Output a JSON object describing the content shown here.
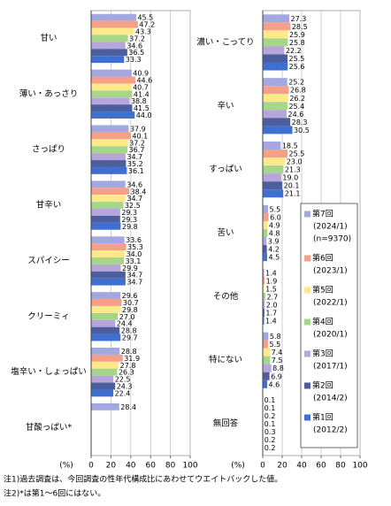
{
  "chart_data": [
    {
      "type": "bar",
      "orientation": "horizontal",
      "xlabel": "(%)",
      "categories": [
        "甘い",
        "薄い・あっさり",
        "さっぱり",
        "甘辛い",
        "スパイシー",
        "クリーミィ",
        "塩辛い・しょっぱい",
        "甘酸っぱい*"
      ],
      "xlim": [
        0,
        100
      ],
      "xticks": [
        0,
        20,
        40,
        60,
        80,
        100
      ],
      "grid": true,
      "series": [
        {
          "color": "#a3a8e0",
          "values": [
            45.5,
            40.9,
            37.9,
            34.6,
            33.6,
            29.6,
            28.8,
            28.4
          ],
          "value_labels": [
            "45.5",
            "40.9",
            "37.9",
            "34.6",
            "33.6",
            "29.6",
            "28.8",
            "28.4"
          ]
        },
        {
          "color": "#f5a088",
          "values": [
            47.2,
            44.6,
            40.1,
            38.4,
            35.3,
            30.7,
            31.9,
            null
          ],
          "value_labels": [
            "47.2",
            "44.6",
            "40.1",
            "38.4",
            "35.3",
            "30.7",
            "31.9",
            null
          ]
        },
        {
          "color": "#ffe98a",
          "values": [
            43.3,
            40.7,
            37.2,
            34.7,
            34.0,
            29.8,
            27.8,
            null
          ],
          "value_labels": [
            "43.3",
            "40.7",
            "37.2",
            "34.7",
            "34.0",
            "29.8",
            "27.8",
            null
          ]
        },
        {
          "color": "#a5d68a",
          "values": [
            37.2,
            41.4,
            36.7,
            32.5,
            33.1,
            27.0,
            26.3,
            null
          ],
          "value_labels": [
            "37.2",
            "41.4",
            "36.7",
            "32.5",
            "33.1",
            "27.0",
            "26.3",
            null
          ]
        },
        {
          "color": "#b7a6dc",
          "values": [
            34.6,
            38.8,
            34.7,
            29.3,
            29.9,
            24.4,
            22.5,
            null
          ],
          "value_labels": [
            "34.6",
            "38.8",
            "34.7",
            "29.3",
            "29.9",
            "24.4",
            "22.5",
            null
          ]
        },
        {
          "color": "#4d5e9e",
          "values": [
            36.5,
            41.5,
            35.2,
            29.3,
            34.7,
            28.8,
            24.3,
            null
          ],
          "value_labels": [
            "36.5",
            "41.5",
            "35.2",
            "29.3",
            "34.7",
            "28.8",
            "24.3",
            null
          ]
        },
        {
          "color": "#3f6fd0",
          "values": [
            33.3,
            44.0,
            36.1,
            29.8,
            34.7,
            29.7,
            22.4,
            null
          ],
          "value_labels": [
            "33.3",
            "44.0",
            "36.1",
            "29.8",
            "34.7",
            "29.7",
            "22.4",
            null
          ]
        }
      ]
    },
    {
      "type": "bar",
      "orientation": "horizontal",
      "xlabel": "(%)",
      "categories": [
        "濃い・こってり",
        "辛い",
        "すっぱい",
        "苦い",
        "その他",
        "特にない",
        "無回答"
      ],
      "xlim": [
        0,
        100
      ],
      "xticks": [
        0,
        20,
        40,
        60,
        80,
        100
      ],
      "grid": true,
      "legend": true,
      "n_label": "(n=9370)",
      "series": [
        {
          "name": "第7回",
          "period": "(2024/1)",
          "color": "#a3a8e0",
          "values": [
            27.3,
            25.2,
            18.5,
            5.5,
            1.4,
            5.8,
            0.1
          ],
          "value_labels": [
            "27.3",
            "25.2",
            "18.5",
            "5.5",
            "1.4",
            "5.8",
            "0.1"
          ]
        },
        {
          "name": "第6回",
          "period": "(2023/1)",
          "color": "#f5a088",
          "values": [
            28.5,
            26.8,
            25.5,
            6.0,
            1.9,
            5.5,
            0.1
          ],
          "value_labels": [
            "28.5",
            "26.8",
            "25.5",
            "6.0",
            "1.9",
            "5.5",
            "0.1"
          ]
        },
        {
          "name": "第5回",
          "period": "(2022/1)",
          "color": "#ffe98a",
          "values": [
            25.9,
            26.2,
            23.0,
            4.9,
            1.5,
            7.4,
            0.2
          ],
          "value_labels": [
            "25.9",
            "26.2",
            "23.0",
            "4.9",
            "1.5",
            "7.4",
            "0.2"
          ]
        },
        {
          "name": "第4回",
          "period": "(2020/1)",
          "color": "#a5d68a",
          "values": [
            25.8,
            25.4,
            21.3,
            4.8,
            2.7,
            7.5,
            0.1
          ],
          "value_labels": [
            "25.8",
            "25.4",
            "21.3",
            "4.8",
            "2.7",
            "7.5",
            "0.1"
          ]
        },
        {
          "name": "第3回",
          "period": "(2017/1)",
          "color": "#b7a6dc",
          "values": [
            22.2,
            24.6,
            19.0,
            3.9,
            2.0,
            8.8,
            0.3
          ],
          "value_labels": [
            "22.2",
            "24.6",
            "19.0",
            "3.9",
            "2.0",
            "8.8",
            "0.3"
          ]
        },
        {
          "name": "第2回",
          "period": "(2014/2)",
          "color": "#4d5e9e",
          "values": [
            25.5,
            28.3,
            20.1,
            4.2,
            1.7,
            6.9,
            0.2
          ],
          "value_labels": [
            "25.5",
            "28.3",
            "20.1",
            "4.2",
            "1.7",
            "6.9",
            "0.2"
          ]
        },
        {
          "name": "第1回",
          "period": "(2012/2)",
          "color": "#3f6fd0",
          "values": [
            25.6,
            30.5,
            21.1,
            4.5,
            1.4,
            4.6,
            0.2
          ],
          "value_labels": [
            "25.6",
            "30.5",
            "21.1",
            "4.5",
            "1.4",
            "4.6",
            "0.2"
          ]
        }
      ]
    }
  ],
  "notes": [
    "注1)過去調査は、今回調査の性年代構成比にあわせてウエイトバックした値。",
    "注2)*は第1～6回にはない。"
  ]
}
